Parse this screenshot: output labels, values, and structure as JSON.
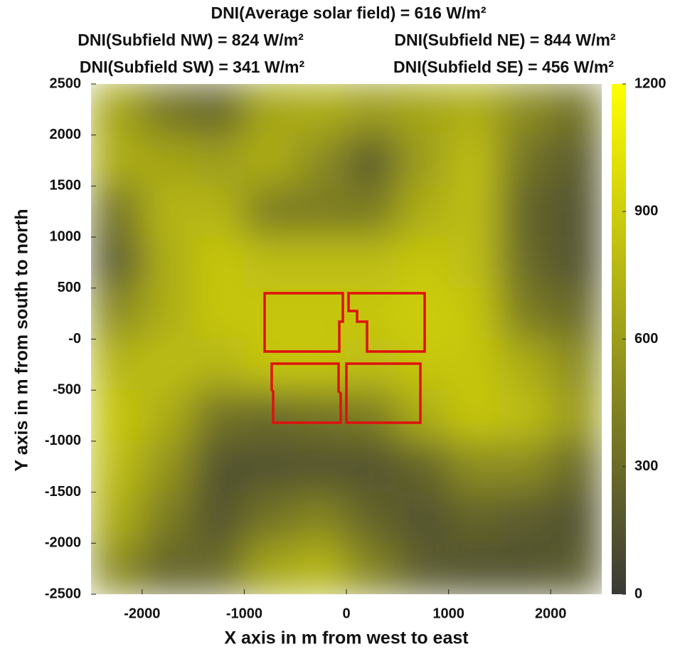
{
  "chart_data": {
    "type": "heatmap",
    "title": "DNI(Average solar field) = 616 W/m²",
    "annotations": [
      "DNI(Subfield NW) = 824 W/m²",
      "DNI(Subfield NE) = 844 W/m²",
      "DNI(Subfield SW) = 341 W/m²",
      "DNI(Subfield SE) = 456 W/m²"
    ],
    "xlabel": "X axis in m from west to east",
    "ylabel": "Y axis in m from south to north",
    "x": [
      -2250,
      -1750,
      -1250,
      -750,
      -250,
      250,
      750,
      1250,
      1750,
      2250
    ],
    "y": [
      2250,
      1750,
      1250,
      750,
      250,
      -250,
      -750,
      -1250,
      -1750,
      -2250
    ],
    "z": [
      [
        650,
        350,
        250,
        650,
        700,
        600,
        650,
        700,
        500,
        350
      ],
      [
        700,
        650,
        600,
        700,
        500,
        200,
        600,
        800,
        350,
        200
      ],
      [
        350,
        750,
        750,
        400,
        400,
        400,
        700,
        800,
        250,
        150
      ],
      [
        200,
        700,
        850,
        800,
        800,
        800,
        850,
        800,
        300,
        150
      ],
      [
        500,
        700,
        850,
        850,
        850,
        850,
        900,
        850,
        400,
        300
      ],
      [
        750,
        800,
        750,
        850,
        850,
        800,
        850,
        850,
        700,
        500
      ],
      [
        850,
        700,
        350,
        300,
        350,
        400,
        700,
        850,
        800,
        600
      ],
      [
        800,
        550,
        150,
        150,
        150,
        150,
        250,
        500,
        500,
        300
      ],
      [
        700,
        400,
        150,
        350,
        450,
        250,
        150,
        250,
        200,
        150
      ],
      [
        500,
        250,
        300,
        650,
        750,
        450,
        200,
        150,
        150,
        200
      ]
    ],
    "xlim": [
      -2500,
      2500
    ],
    "ylim": [
      -2500,
      2500
    ],
    "xticks": [
      -2000,
      -1000,
      0,
      1000,
      2000
    ],
    "yticks": [
      -2500,
      -2000,
      -1500,
      -1000,
      -500,
      {
        "value": 0,
        "label": "-0"
      },
      500,
      1000,
      1500,
      2000,
      2500
    ],
    "clim": [
      0,
      1200
    ],
    "cticks": [
      0,
      300,
      600,
      900,
      1200
    ],
    "colormap": [
      "#3a3a36",
      "#ffff00"
    ],
    "outline_color": "#e01010"
  }
}
